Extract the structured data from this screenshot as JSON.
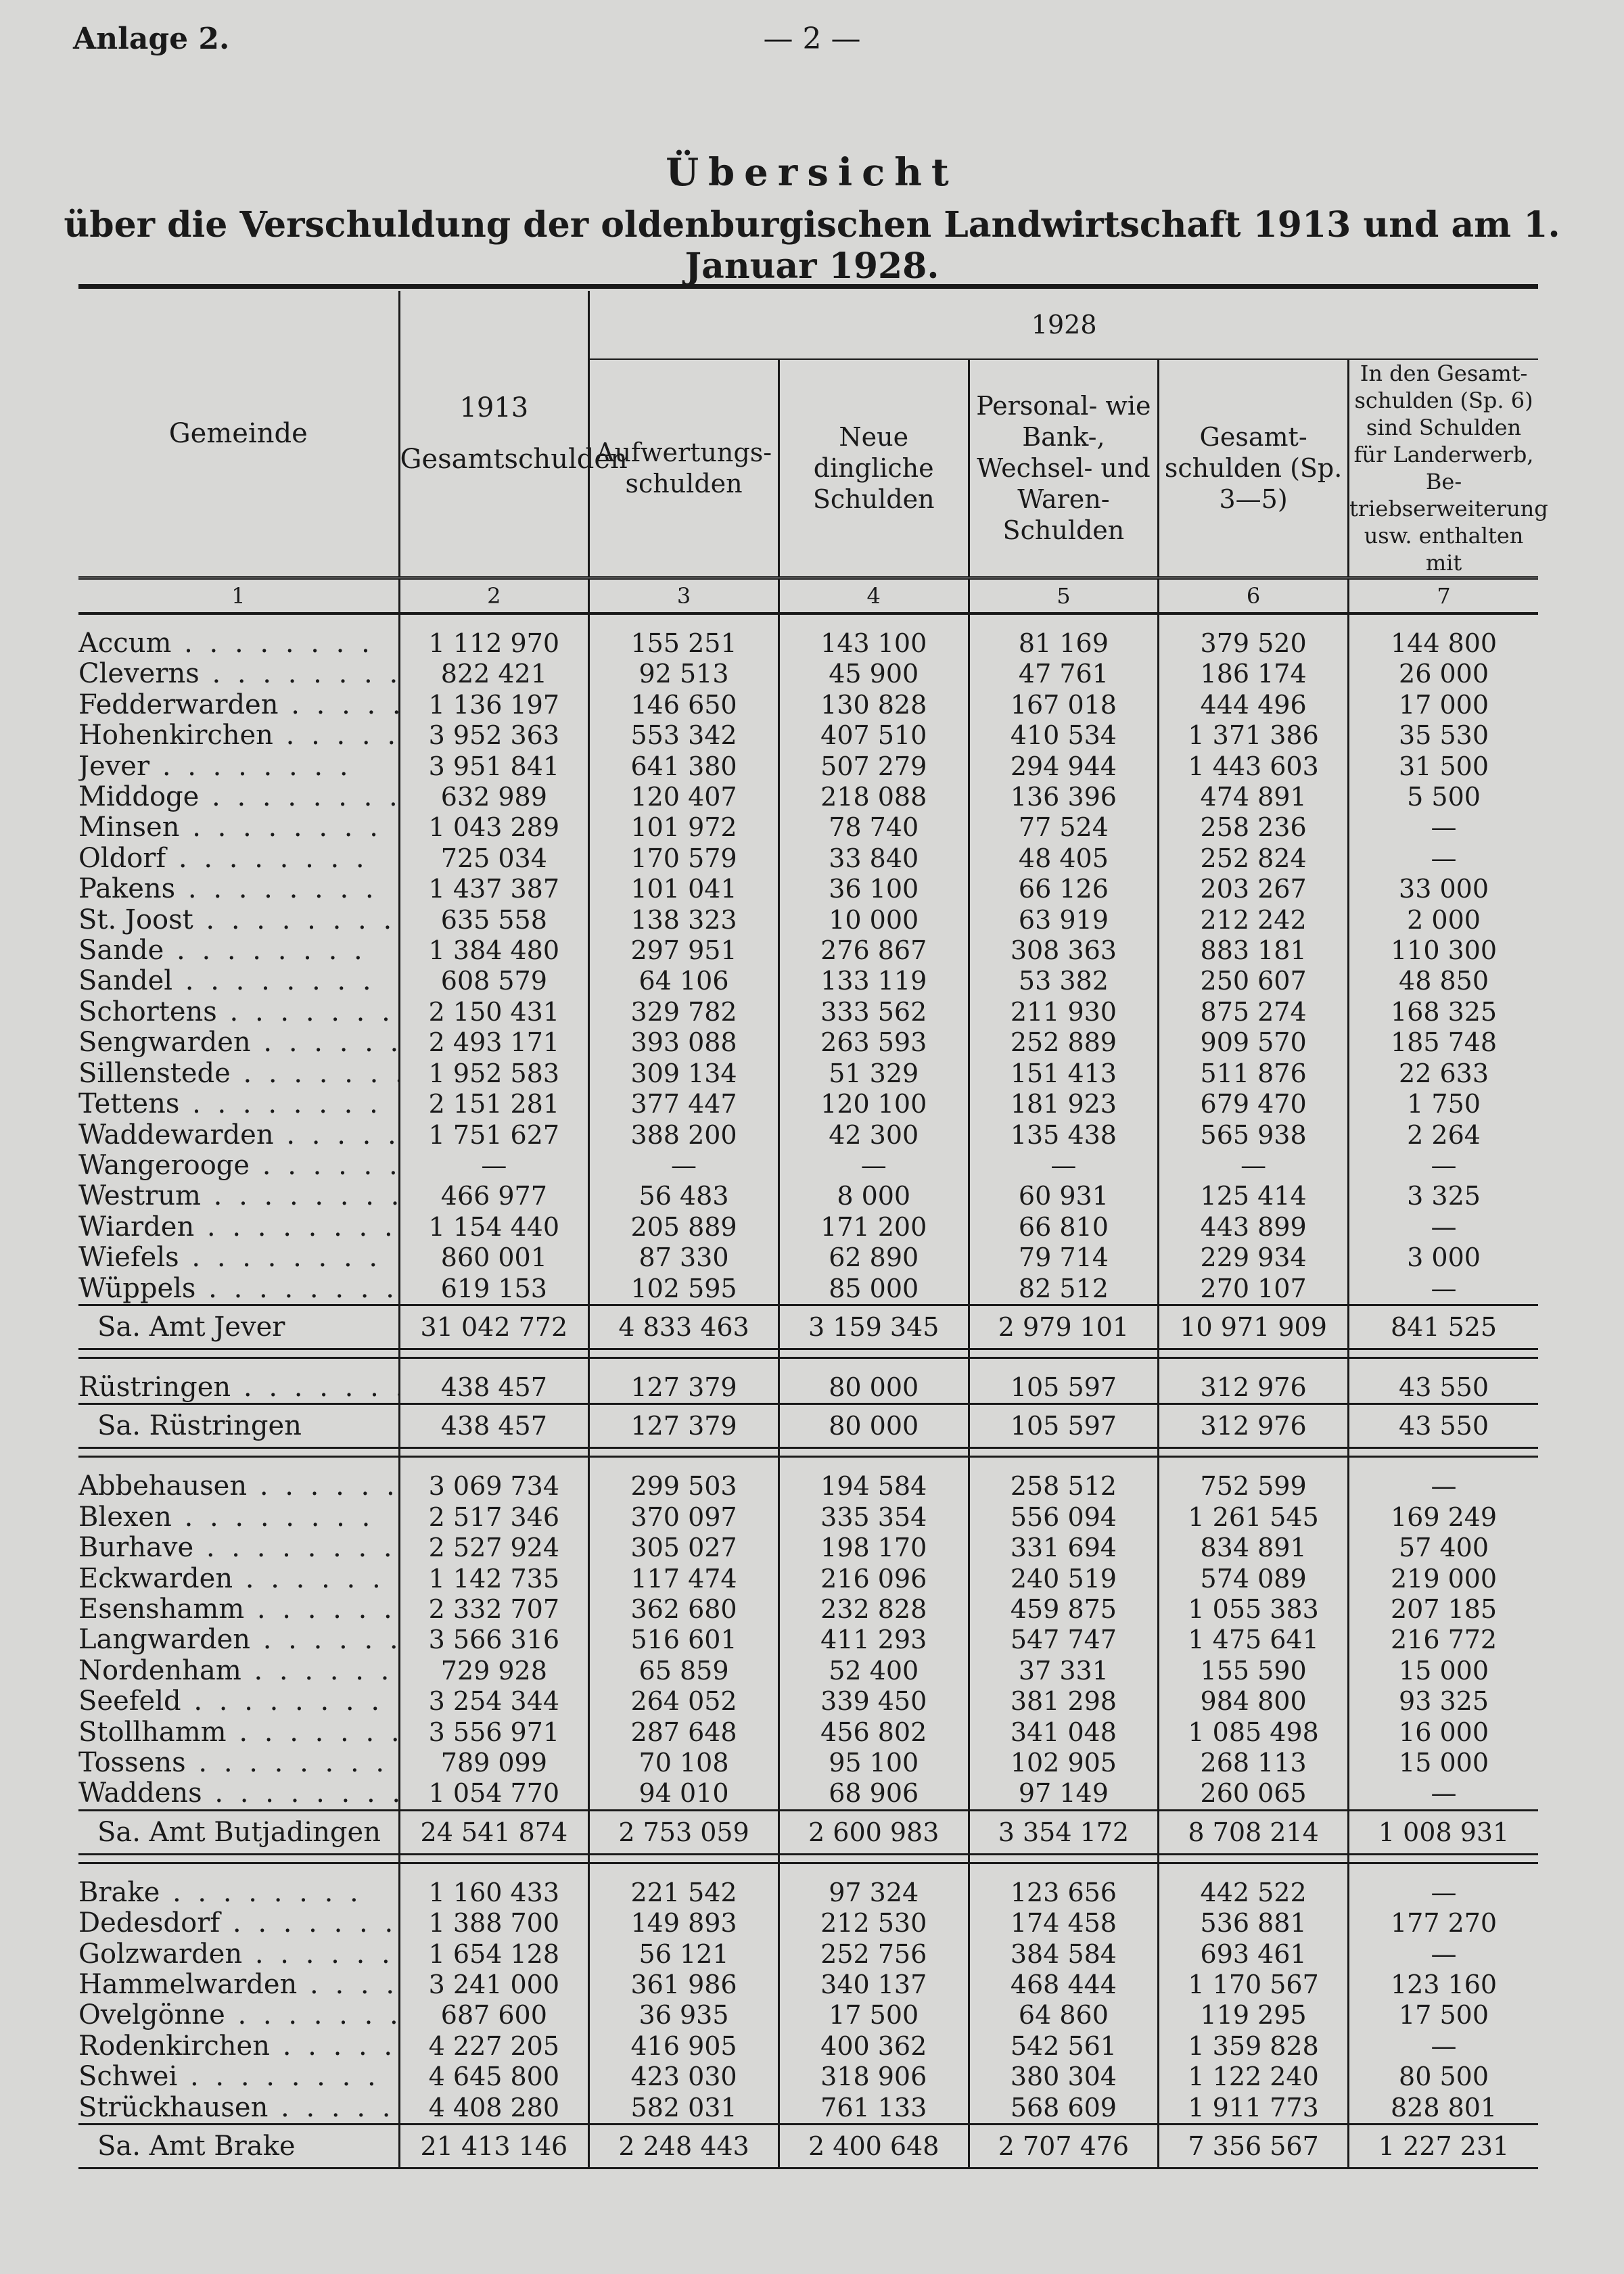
{
  "header": {
    "annex": "Anlage 2.",
    "page_number": "— 2 —"
  },
  "title": "Übersicht",
  "subtitle": "über die Verschuldung der oldenburgischen Landwirtschaft 1913 und am 1. Januar 1928.",
  "columns": {
    "gemeinde": "Gemeinde",
    "year_1913": "1913",
    "col2": "Gesamtschulden",
    "year_1928": "1928",
    "col3": "Aufwertungs-schulden",
    "col4": "Neue dingliche Schulden",
    "col5": "Personal- wie Bank-, Wechsel- und Waren-Schulden",
    "col6": "Gesamt-schulden (Sp. 3—5)",
    "col7": "In den Gesamt-schulden (Sp. 6) sind Schulden für Landerwerb, Be-triebserweiterung usw. enthalten mit",
    "numbers": [
      "1",
      "2",
      "3",
      "4",
      "5",
      "6",
      "7"
    ]
  },
  "groups": [
    {
      "rows": [
        {
          "name": "Accum",
          "v": [
            "1 112 970",
            "155 251",
            "143 100",
            "81 169",
            "379 520",
            "144 800"
          ]
        },
        {
          "name": "Cleverns",
          "v": [
            "822 421",
            "92 513",
            "45 900",
            "47 761",
            "186 174",
            "26 000"
          ]
        },
        {
          "name": "Fedderwarden",
          "v": [
            "1 136 197",
            "146 650",
            "130 828",
            "167 018",
            "444 496",
            "17 000"
          ]
        },
        {
          "name": "Hohenkirchen",
          "v": [
            "3 952 363",
            "553 342",
            "407 510",
            "410 534",
            "1 371 386",
            "35 530"
          ]
        },
        {
          "name": "Jever",
          "v": [
            "3 951 841",
            "641 380",
            "507 279",
            "294 944",
            "1 443 603",
            "31 500"
          ]
        },
        {
          "name": "Middoge",
          "v": [
            "632 989",
            "120 407",
            "218 088",
            "136 396",
            "474 891",
            "5 500"
          ]
        },
        {
          "name": "Minsen",
          "v": [
            "1 043 289",
            "101 972",
            "78 740",
            "77 524",
            "258 236",
            "—"
          ]
        },
        {
          "name": "Oldorf",
          "v": [
            "725 034",
            "170 579",
            "33 840",
            "48 405",
            "252 824",
            "—"
          ]
        },
        {
          "name": "Pakens",
          "v": [
            "1 437 387",
            "101 041",
            "36 100",
            "66 126",
            "203 267",
            "33 000"
          ]
        },
        {
          "name": "St. Joost",
          "v": [
            "635 558",
            "138 323",
            "10 000",
            "63 919",
            "212 242",
            "2 000"
          ]
        },
        {
          "name": "Sande",
          "v": [
            "1 384 480",
            "297 951",
            "276 867",
            "308 363",
            "883 181",
            "110 300"
          ]
        },
        {
          "name": "Sandel",
          "v": [
            "608 579",
            "64 106",
            "133 119",
            "53 382",
            "250 607",
            "48 850"
          ]
        },
        {
          "name": "Schortens",
          "v": [
            "2 150 431",
            "329 782",
            "333 562",
            "211 930",
            "875 274",
            "168 325"
          ]
        },
        {
          "name": "Sengwarden",
          "v": [
            "2 493 171",
            "393 088",
            "263 593",
            "252 889",
            "909 570",
            "185 748"
          ]
        },
        {
          "name": "Sillenstede",
          "v": [
            "1 952 583",
            "309 134",
            "51 329",
            "151 413",
            "511 876",
            "22 633"
          ]
        },
        {
          "name": "Tettens",
          "v": [
            "2 151 281",
            "377 447",
            "120 100",
            "181 923",
            "679 470",
            "1 750"
          ]
        },
        {
          "name": "Waddewarden",
          "v": [
            "1 751 627",
            "388 200",
            "42 300",
            "135 438",
            "565 938",
            "2 264"
          ]
        },
        {
          "name": "Wangerooge",
          "v": [
            "—",
            "—",
            "—",
            "—",
            "—",
            "—"
          ]
        },
        {
          "name": "Westrum",
          "v": [
            "466 977",
            "56 483",
            "8 000",
            "60 931",
            "125 414",
            "3 325"
          ]
        },
        {
          "name": "Wiarden",
          "v": [
            "1 154 440",
            "205 889",
            "171 200",
            "66 810",
            "443 899",
            "—"
          ]
        },
        {
          "name": "Wiefels",
          "v": [
            "860 001",
            "87 330",
            "62 890",
            "79 714",
            "229 934",
            "3 000"
          ]
        },
        {
          "name": "Wüppels",
          "v": [
            "619 153",
            "102 595",
            "85 000",
            "82 512",
            "270 107",
            "—"
          ]
        }
      ],
      "total": {
        "name": "Sa. Amt Jever",
        "v": [
          "31 042 772",
          "4 833 463",
          "3 159 345",
          "2 979 101",
          "10 971 909",
          "841 525"
        ]
      }
    },
    {
      "rows": [
        {
          "name": "Rüstringen",
          "v": [
            "438 457",
            "127 379",
            "80 000",
            "105 597",
            "312 976",
            "43 550"
          ]
        }
      ],
      "total": {
        "name": "Sa. Rüstringen",
        "v": [
          "438 457",
          "127 379",
          "80 000",
          "105 597",
          "312 976",
          "43 550"
        ]
      }
    },
    {
      "rows": [
        {
          "name": "Abbehausen",
          "v": [
            "3 069 734",
            "299 503",
            "194 584",
            "258 512",
            "752 599",
            "—"
          ]
        },
        {
          "name": "Blexen",
          "v": [
            "2 517 346",
            "370 097",
            "335 354",
            "556 094",
            "1 261 545",
            "169 249"
          ]
        },
        {
          "name": "Burhave",
          "v": [
            "2 527 924",
            "305 027",
            "198 170",
            "331 694",
            "834 891",
            "57 400"
          ]
        },
        {
          "name": "Eckwarden",
          "v": [
            "1 142 735",
            "117 474",
            "216 096",
            "240 519",
            "574 089",
            "219 000"
          ]
        },
        {
          "name": "Esenshamm",
          "v": [
            "2 332 707",
            "362 680",
            "232 828",
            "459 875",
            "1 055 383",
            "207 185"
          ]
        },
        {
          "name": "Langwarden",
          "v": [
            "3 566 316",
            "516 601",
            "411 293",
            "547 747",
            "1 475 641",
            "216 772"
          ]
        },
        {
          "name": "Nordenham",
          "v": [
            "729 928",
            "65 859",
            "52 400",
            "37 331",
            "155 590",
            "15 000"
          ]
        },
        {
          "name": "Seefeld",
          "v": [
            "3 254 344",
            "264 052",
            "339 450",
            "381 298",
            "984 800",
            "93 325"
          ]
        },
        {
          "name": "Stollhamm",
          "v": [
            "3 556 971",
            "287 648",
            "456 802",
            "341 048",
            "1 085 498",
            "16 000"
          ]
        },
        {
          "name": "Tossens",
          "v": [
            "789 099",
            "70 108",
            "95 100",
            "102 905",
            "268 113",
            "15 000"
          ]
        },
        {
          "name": "Waddens",
          "v": [
            "1 054 770",
            "94 010",
            "68 906",
            "97 149",
            "260 065",
            "—"
          ]
        }
      ],
      "total": {
        "name": "Sa. Amt Butjadingen",
        "v": [
          "24 541 874",
          "2 753 059",
          "2 600 983",
          "3 354 172",
          "8 708 214",
          "1 008 931"
        ]
      }
    },
    {
      "rows": [
        {
          "name": "Brake",
          "v": [
            "1 160 433",
            "221 542",
            "97 324",
            "123 656",
            "442 522",
            "—"
          ]
        },
        {
          "name": "Dedesdorf",
          "v": [
            "1 388 700",
            "149 893",
            "212 530",
            "174 458",
            "536 881",
            "177 270"
          ]
        },
        {
          "name": "Golzwarden",
          "v": [
            "1 654 128",
            "56 121",
            "252 756",
            "384 584",
            "693 461",
            "—"
          ]
        },
        {
          "name": "Hammelwarden",
          "v": [
            "3 241 000",
            "361 986",
            "340 137",
            "468 444",
            "1 170 567",
            "123 160"
          ]
        },
        {
          "name": "Ovelgönne",
          "v": [
            "687 600",
            "36 935",
            "17 500",
            "64 860",
            "119 295",
            "17 500"
          ]
        },
        {
          "name": "Rodenkirchen",
          "v": [
            "4 227 205",
            "416 905",
            "400 362",
            "542 561",
            "1 359 828",
            "—"
          ]
        },
        {
          "name": "Schwei",
          "v": [
            "4 645 800",
            "423 030",
            "318 906",
            "380 304",
            "1 122 240",
            "80 500"
          ]
        },
        {
          "name": "Strückhausen",
          "v": [
            "4 408 280",
            "582 031",
            "761 133",
            "568 609",
            "1 911 773",
            "828 801"
          ]
        }
      ],
      "total": {
        "name": "Sa. Amt Brake",
        "v": [
          "21 413 146",
          "2 248 443",
          "2 400 648",
          "2 707 476",
          "7 356 567",
          "1 227 231"
        ]
      }
    }
  ]
}
